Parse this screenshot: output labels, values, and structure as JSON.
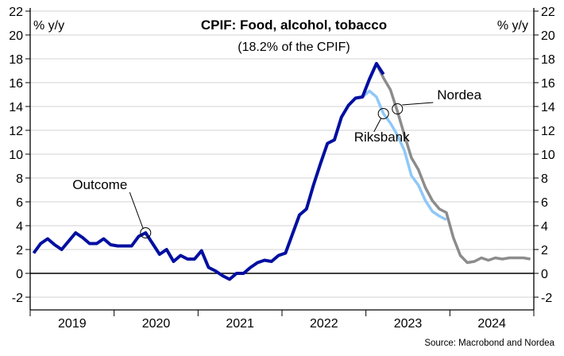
{
  "chart_data": {
    "type": "line",
    "title": "CPIF: Food, alcohol, tobacco",
    "subtitle": "(18.2% of the CPIF)",
    "ylabel_left": "% y/y",
    "ylabel_right": "% y/y",
    "ylim": [
      -3,
      22.3
    ],
    "yticks": [
      -2,
      0,
      2,
      4,
      6,
      8,
      10,
      12,
      14,
      16,
      18,
      20,
      22
    ],
    "xticks": [
      "2019",
      "2020",
      "2021",
      "2022",
      "2023",
      "2024"
    ],
    "grid": true,
    "x_frequency": "monthly",
    "series": [
      {
        "name": "Outcome",
        "color": "#000fa0",
        "start": "2019-01",
        "values": [
          1.7,
          2.5,
          2.9,
          2.4,
          2.0,
          2.7,
          3.4,
          3.0,
          2.5,
          2.5,
          2.9,
          2.4,
          2.3,
          2.3,
          2.3,
          3.1,
          3.4,
          2.5,
          1.6,
          2.0,
          1.0,
          1.5,
          1.2,
          1.2,
          1.9,
          0.5,
          0.2,
          -0.2,
          -0.5,
          0.0,
          0.0,
          0.5,
          0.9,
          1.1,
          1.0,
          1.5,
          1.7,
          3.3,
          4.9,
          5.4,
          7.4,
          9.2,
          10.9,
          11.2,
          13.1,
          14.1,
          14.7,
          14.8,
          16.3,
          17.6,
          16.7
        ]
      },
      {
        "name": "Riksbank",
        "color": "#8fc8f8",
        "start": "2022-12",
        "values": [
          14.8,
          15.3,
          14.8,
          13.4,
          12.6,
          11.6,
          10.3,
          8.2,
          7.4,
          6.1,
          5.2,
          4.8,
          4.5
        ]
      },
      {
        "name": "Nordea",
        "color": "#8c8c8c",
        "start": "2023-02",
        "values": [
          17.6,
          16.4,
          15.4,
          13.6,
          11.6,
          9.7,
          8.7,
          7.2,
          6.1,
          5.4,
          5.1,
          3.0,
          1.5,
          0.9,
          1.0,
          1.3,
          1.1,
          1.3,
          1.2,
          1.3,
          1.3,
          1.3,
          1.2
        ]
      }
    ],
    "annotations": [
      {
        "text": "Outcome",
        "at": "2020-05",
        "value": 3.4
      },
      {
        "text": "Riksbank",
        "at": "2023-03",
        "value": 13.4
      },
      {
        "text": "Nordea",
        "at": "2023-05",
        "value": 13.8
      }
    ],
    "source": "Source: Macrobond and Nordea"
  }
}
